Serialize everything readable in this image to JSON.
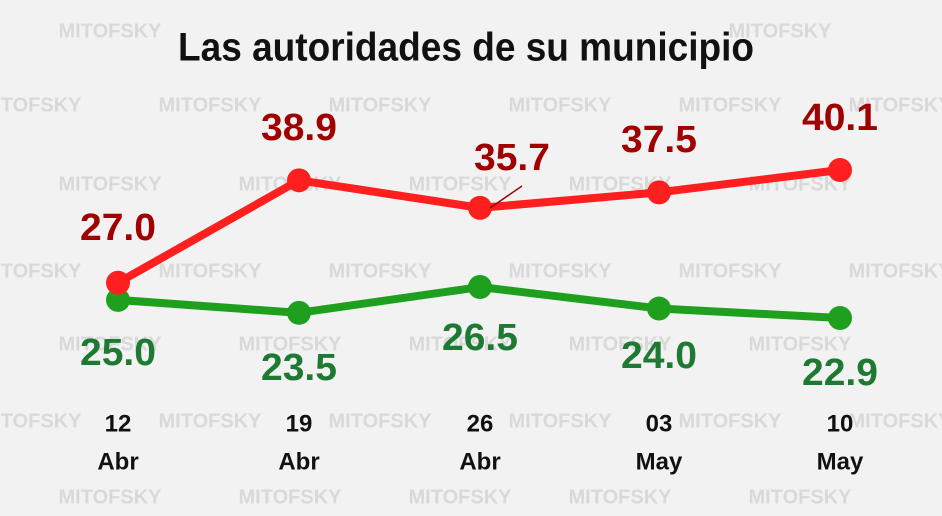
{
  "chart_data": {
    "type": "line",
    "title": "Las autoridades de su municipio",
    "watermark": "MITOFSKY",
    "categories": [
      [
        "12",
        "Abr"
      ],
      [
        "19",
        "Abr"
      ],
      [
        "26",
        "Abr"
      ],
      [
        "03",
        "May"
      ],
      [
        "10",
        "May"
      ]
    ],
    "series": [
      {
        "color": "#ff1f1f",
        "label_color": "#a00000",
        "values": [
          27.0,
          38.9,
          35.7,
          37.5,
          40.1
        ],
        "value_labels": [
          "27.0",
          "38.9",
          "35.7",
          "37.5",
          "40.1"
        ]
      },
      {
        "color": "#1ea01e",
        "label_color": "#1e7a32",
        "values": [
          25.0,
          23.5,
          26.5,
          24.0,
          22.9
        ],
        "value_labels": [
          "25.0",
          "23.5",
          "26.5",
          "24.0",
          "22.9"
        ]
      }
    ]
  }
}
